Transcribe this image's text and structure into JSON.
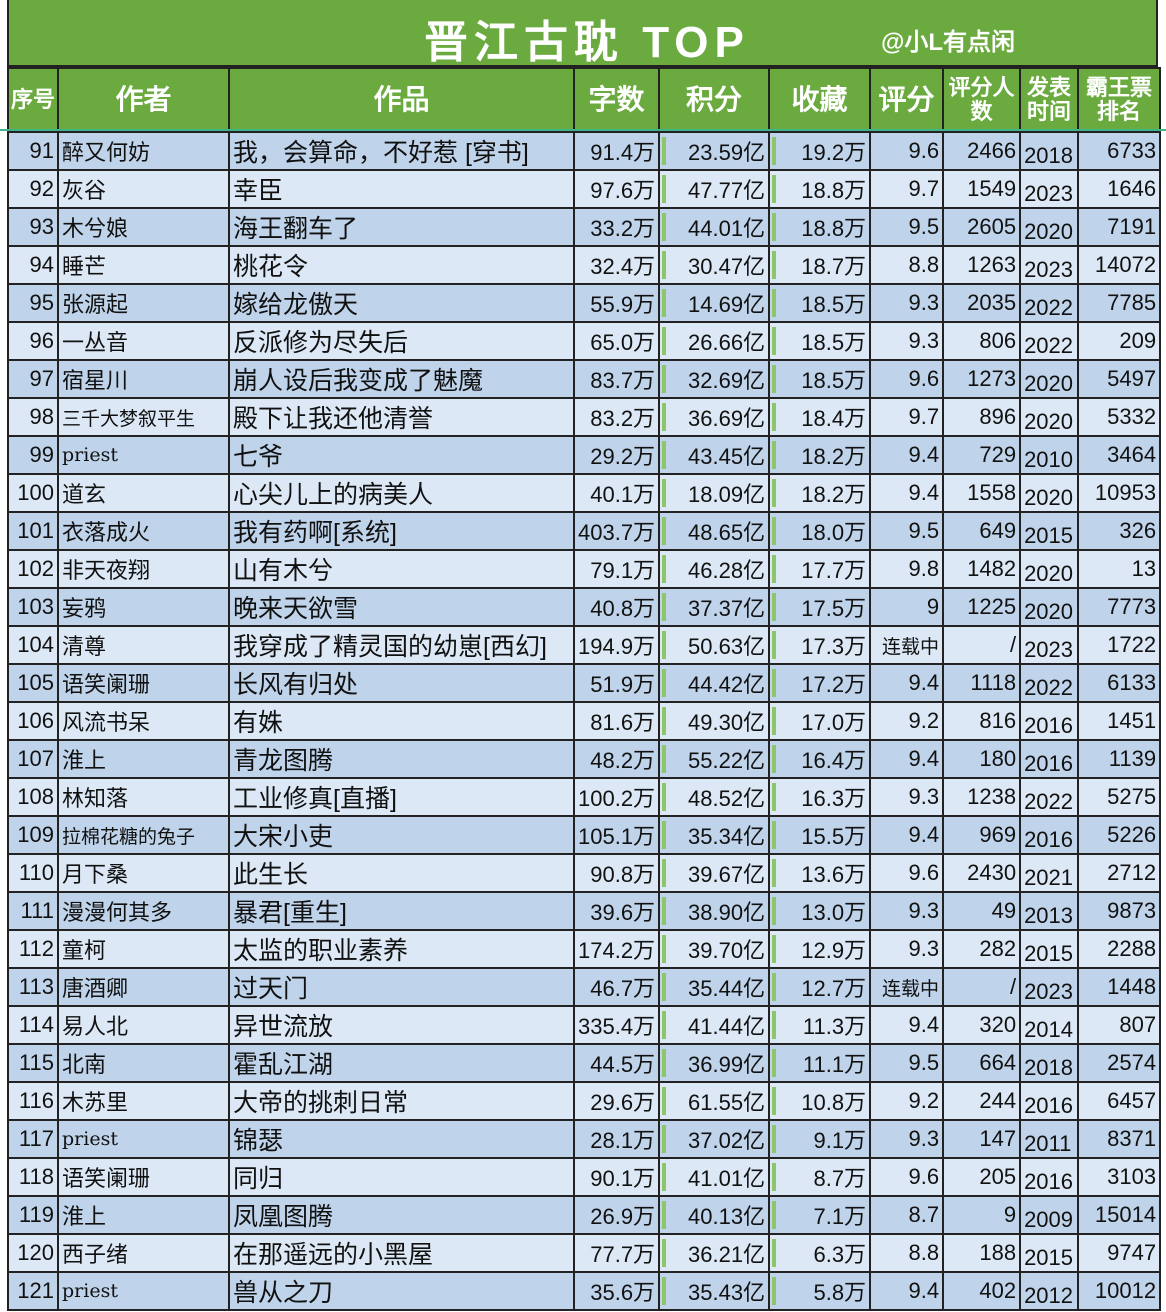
{
  "title": "晋江古耽 TOP",
  "credit": "@小L有点闲",
  "columns": [
    "序号",
    "作者",
    "作品",
    "字数",
    "积分",
    "收藏",
    "评分",
    "评分人数",
    "发表时间",
    "霸王票排名"
  ],
  "rows": [
    [
      "91",
      "醉又何妨",
      "我，会算命，不好惹 [穿书]",
      "91.4万",
      "23.59亿",
      "19.2万",
      "9.6",
      "2466",
      "2018",
      "6733"
    ],
    [
      "92",
      "灰谷",
      "幸臣",
      "97.6万",
      "47.77亿",
      "18.8万",
      "9.7",
      "1549",
      "2023",
      "1646"
    ],
    [
      "93",
      "木兮娘",
      "海王翻车了",
      "33.2万",
      "44.01亿",
      "18.8万",
      "9.5",
      "2605",
      "2020",
      "7191"
    ],
    [
      "94",
      "睡芒",
      "桃花令",
      "32.4万",
      "30.47亿",
      "18.7万",
      "8.8",
      "1263",
      "2023",
      "14072"
    ],
    [
      "95",
      "张源起",
      "嫁给龙傲天",
      "55.9万",
      "14.69亿",
      "18.5万",
      "9.3",
      "2035",
      "2022",
      "7785"
    ],
    [
      "96",
      "一丛音",
      "反派修为尽失后",
      "65.0万",
      "26.66亿",
      "18.5万",
      "9.3",
      "806",
      "2022",
      "209"
    ],
    [
      "97",
      "宿星川",
      "崩人设后我变成了魅魔",
      "83.7万",
      "32.69亿",
      "18.5万",
      "9.6",
      "1273",
      "2020",
      "5497"
    ],
    [
      "98",
      "三千大梦叙平生",
      "殿下让我还他清誉",
      "83.2万",
      "36.69亿",
      "18.4万",
      "9.7",
      "896",
      "2020",
      "5332"
    ],
    [
      "99",
      "priest",
      "七爷",
      "29.2万",
      "43.45亿",
      "18.2万",
      "9.4",
      "729",
      "2010",
      "3464"
    ],
    [
      "100",
      "道玄",
      "心尖儿上的病美人",
      "40.1万",
      "18.09亿",
      "18.2万",
      "9.4",
      "1558",
      "2020",
      "10953"
    ],
    [
      "101",
      "衣落成火",
      "我有药啊[系统]",
      "403.7万",
      "48.65亿",
      "18.0万",
      "9.5",
      "649",
      "2015",
      "326"
    ],
    [
      "102",
      "非天夜翔",
      "山有木兮",
      "79.1万",
      "46.28亿",
      "17.7万",
      "9.8",
      "1482",
      "2020",
      "13"
    ],
    [
      "103",
      "妄鸦",
      "晚来天欲雪",
      "40.8万",
      "37.37亿",
      "17.5万",
      "9",
      "1225",
      "2020",
      "7773"
    ],
    [
      "104",
      "清尊",
      "我穿成了精灵国的幼崽[西幻]",
      "194.9万",
      "50.63亿",
      "17.3万",
      "连载中",
      "/",
      "2023",
      "1722"
    ],
    [
      "105",
      "语笑阑珊",
      "长风有归处",
      "51.9万",
      "44.42亿",
      "17.2万",
      "9.4",
      "1118",
      "2022",
      "6133"
    ],
    [
      "106",
      "风流书呆",
      "有姝",
      "81.6万",
      "49.30亿",
      "17.0万",
      "9.2",
      "816",
      "2016",
      "1451"
    ],
    [
      "107",
      "淮上",
      "青龙图腾",
      "48.2万",
      "55.22亿",
      "16.4万",
      "9.4",
      "180",
      "2016",
      "1139"
    ],
    [
      "108",
      "林知落",
      "工业修真[直播]",
      "100.2万",
      "48.52亿",
      "16.3万",
      "9.3",
      "1238",
      "2022",
      "5275"
    ],
    [
      "109",
      "拉棉花糖的兔子",
      "大宋小吏",
      "105.1万",
      "35.34亿",
      "15.5万",
      "9.4",
      "969",
      "2016",
      "5226"
    ],
    [
      "110",
      "月下桑",
      "此生长",
      "90.8万",
      "39.67亿",
      "13.6万",
      "9.6",
      "2430",
      "2021",
      "2712"
    ],
    [
      "111",
      "漫漫何其多",
      "暴君[重生]",
      "39.6万",
      "38.90亿",
      "13.0万",
      "9.3",
      "49",
      "2013",
      "9873"
    ],
    [
      "112",
      "童柯",
      "太监的职业素养",
      "174.2万",
      "39.70亿",
      "12.9万",
      "9.3",
      "282",
      "2015",
      "2288"
    ],
    [
      "113",
      "唐酒卿",
      "过天门",
      "46.7万",
      "35.44亿",
      "12.7万",
      "连载中",
      "/",
      "2023",
      "1448"
    ],
    [
      "114",
      "易人北",
      "异世流放",
      "335.4万",
      "41.44亿",
      "11.3万",
      "9.4",
      "320",
      "2014",
      "807"
    ],
    [
      "115",
      "北南",
      "霍乱江湖",
      "44.5万",
      "36.99亿",
      "11.1万",
      "9.5",
      "664",
      "2018",
      "2574"
    ],
    [
      "116",
      "木苏里",
      "大帝的挑刺日常",
      "29.6万",
      "61.55亿",
      "10.8万",
      "9.2",
      "244",
      "2016",
      "6457"
    ],
    [
      "117",
      "priest",
      "锦瑟",
      "28.1万",
      "37.02亿",
      "9.1万",
      "9.3",
      "147",
      "2011",
      "8371"
    ],
    [
      "118",
      "语笑阑珊",
      "同归",
      "90.1万",
      "41.01亿",
      "8.7万",
      "9.6",
      "205",
      "2016",
      "3103"
    ],
    [
      "119",
      "淮上",
      "凤凰图腾",
      "26.9万",
      "40.13亿",
      "7.1万",
      "8.7",
      "9",
      "2009",
      "15014"
    ],
    [
      "120",
      "西子绪",
      "在那遥远的小黑屋",
      "77.7万",
      "36.21亿",
      "6.3万",
      "8.8",
      "188",
      "2015",
      "9747"
    ],
    [
      "121",
      "priest",
      "兽从之刀",
      "35.6万",
      "35.43亿",
      "5.8万",
      "9.4",
      "402",
      "2012",
      "10012"
    ]
  ],
  "colors": {
    "header_green": "#6aaa3e",
    "row_dark": "#bfd3ea",
    "row_light": "#dce8f5",
    "bar_green": "#8cc56a"
  }
}
